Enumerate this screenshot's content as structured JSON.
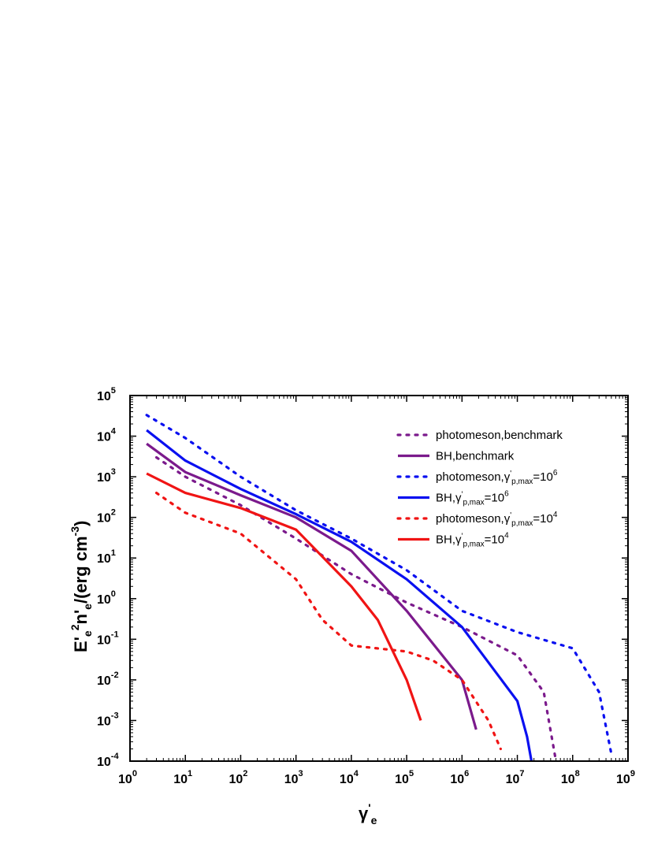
{
  "chart_data": {
    "type": "line",
    "xscale": "log",
    "yscale": "log",
    "xlim": [
      1,
      1000000000
    ],
    "ylim": [
      0.0001,
      100000
    ],
    "x_ticks": [
      1,
      10,
      100,
      1000,
      10000,
      100000,
      1000000,
      10000000,
      100000000,
      1000000000
    ],
    "y_ticks": [
      0.0001,
      0.001,
      0.01,
      0.1,
      1,
      10,
      100,
      1000,
      10000,
      100000
    ],
    "x_tick_labels": [
      {
        "base": "10",
        "exp": "0"
      },
      {
        "base": "10",
        "exp": "1"
      },
      {
        "base": "10",
        "exp": "2"
      },
      {
        "base": "10",
        "exp": "3"
      },
      {
        "base": "10",
        "exp": "4"
      },
      {
        "base": "10",
        "exp": "5"
      },
      {
        "base": "10",
        "exp": "6"
      },
      {
        "base": "10",
        "exp": "7"
      },
      {
        "base": "10",
        "exp": "8"
      },
      {
        "base": "10",
        "exp": "9"
      }
    ],
    "y_tick_labels": [
      {
        "base": "10",
        "exp": "-4"
      },
      {
        "base": "10",
        "exp": "-3"
      },
      {
        "base": "10",
        "exp": "-2"
      },
      {
        "base": "10",
        "exp": "-1"
      },
      {
        "base": "10",
        "exp": "0"
      },
      {
        "base": "10",
        "exp": "1"
      },
      {
        "base": "10",
        "exp": "2"
      },
      {
        "base": "10",
        "exp": "3"
      },
      {
        "base": "10",
        "exp": "4"
      },
      {
        "base": "10",
        "exp": "5"
      }
    ],
    "xlabel": {
      "main": "γ",
      "prime": "'",
      "sub": "e"
    },
    "ylabel": {
      "p1": "E'",
      "sub1": "e",
      "sup1": "2",
      "p2": "n'",
      "sub2": "e",
      "p3": "/(erg cm",
      "sup3": "-3",
      "p4": ")"
    },
    "legend_position": "top-right",
    "grid": false,
    "series": [
      {
        "key": "pm_bench",
        "legend": {
          "prefix": "photomeson,benchmark"
        },
        "color": "#7b1a8c",
        "style": "dotted",
        "x": [
          3,
          10,
          100,
          1000,
          10000,
          100000,
          1000000,
          10000000,
          30000000,
          50000000
        ],
        "y": [
          3000,
          1000,
          200,
          30,
          4,
          0.8,
          0.2,
          0.04,
          0.005,
          0.0001
        ]
      },
      {
        "key": "bh_bench",
        "legend": {
          "prefix": "BH,benchmark"
        },
        "color": "#7b1a8c",
        "style": "solid",
        "x": [
          2,
          10,
          100,
          1000,
          10000,
          100000,
          1000000,
          1800000
        ],
        "y": [
          6500,
          1300,
          350,
          100,
          15,
          0.5,
          0.01,
          0.0006
        ]
      },
      {
        "key": "pm_1e6",
        "legend": {
          "prefix": "photomeson,",
          "greek": "γ",
          "prime": "'",
          "sub": "p,max",
          "mid": "=10",
          "sup": "6"
        },
        "color": "#0a10f0",
        "style": "dotted",
        "x": [
          2,
          10,
          100,
          1000,
          10000,
          100000,
          1000000,
          10000000,
          100000000,
          300000000,
          500000000
        ],
        "y": [
          33000,
          9000,
          1000,
          150,
          30,
          5,
          0.5,
          0.15,
          0.06,
          0.005,
          0.00015
        ]
      },
      {
        "key": "bh_1e6",
        "legend": {
          "prefix": "BH,",
          "greek": "γ",
          "prime": "'",
          "sub": "p,max",
          "mid": "=10",
          "sup": "6"
        },
        "color": "#0a10f0",
        "style": "solid",
        "x": [
          2,
          10,
          100,
          1000,
          10000,
          100000,
          1000000,
          10000000,
          15000000,
          18000000
        ],
        "y": [
          14000,
          2500,
          500,
          120,
          25,
          3,
          0.2,
          0.003,
          0.0004,
          0.0001
        ]
      },
      {
        "key": "pm_1e4",
        "legend": {
          "prefix": "photomeson,",
          "greek": "γ",
          "prime": "'",
          "sub": "p,max",
          "mid": "=10",
          "sup": "4"
        },
        "color": "#f01414",
        "style": "dotted",
        "x": [
          3,
          10,
          100,
          1000,
          3000,
          10000,
          100000,
          300000,
          1000000,
          3000000,
          5000000
        ],
        "y": [
          400,
          130,
          40,
          3,
          0.3,
          0.07,
          0.05,
          0.03,
          0.01,
          0.001,
          0.0002
        ]
      },
      {
        "key": "bh_1e4",
        "legend": {
          "prefix": "BH,",
          "greek": "γ",
          "prime": "'",
          "sub": "p,max",
          "mid": "=10",
          "sup": "4"
        },
        "color": "#f01414",
        "style": "solid",
        "x": [
          2,
          10,
          100,
          1000,
          10000,
          30000,
          100000,
          180000
        ],
        "y": [
          1200,
          400,
          170,
          50,
          2,
          0.3,
          0.01,
          0.001
        ]
      }
    ]
  }
}
